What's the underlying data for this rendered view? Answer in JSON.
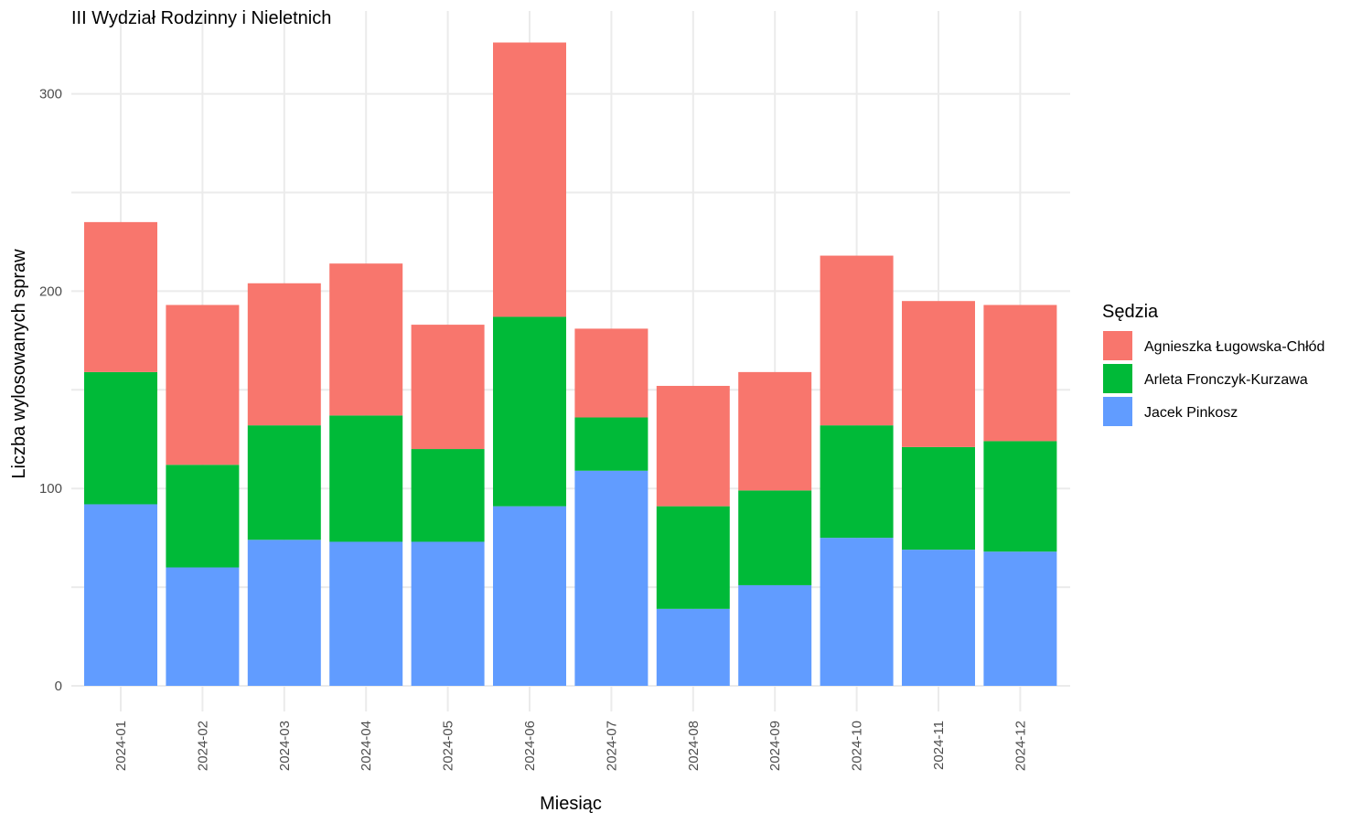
{
  "chart_data": {
    "type": "bar",
    "stacked": true,
    "title": "III Wydział Rodzinny i Nieletnich",
    "xlabel": "Miesiąc",
    "ylabel": "Liczba wylosowanych spraw",
    "ylim": [
      0,
      325
    ],
    "yticks": [
      0,
      100,
      200,
      300
    ],
    "grid": true,
    "legend_position": "right",
    "legend_title": "Sędzia",
    "categories": [
      "2024-01",
      "2024-02",
      "2024-03",
      "2024-04",
      "2024-05",
      "2024-06",
      "2024-07",
      "2024-08",
      "2024-09",
      "2024-10",
      "2024-11",
      "2024-12"
    ],
    "series": [
      {
        "name": "Jacek Pinkosz",
        "color": "#619CFF",
        "values": [
          92,
          60,
          74,
          73,
          73,
          91,
          109,
          39,
          51,
          75,
          69,
          68
        ]
      },
      {
        "name": "Arleta Fronczyk-Kurzawa",
        "color": "#00BA38",
        "values": [
          67,
          52,
          58,
          64,
          47,
          96,
          27,
          52,
          48,
          57,
          52,
          56
        ]
      },
      {
        "name": "Agnieszka Ługowska-Chłód",
        "color": "#F8766D",
        "values": [
          76,
          81,
          72,
          77,
          63,
          139,
          45,
          61,
          60,
          86,
          74,
          69
        ]
      }
    ],
    "legend_order": [
      "Agnieszka Ługowska-Chłód",
      "Arleta Fronczyk-Kurzawa",
      "Jacek Pinkosz"
    ]
  }
}
